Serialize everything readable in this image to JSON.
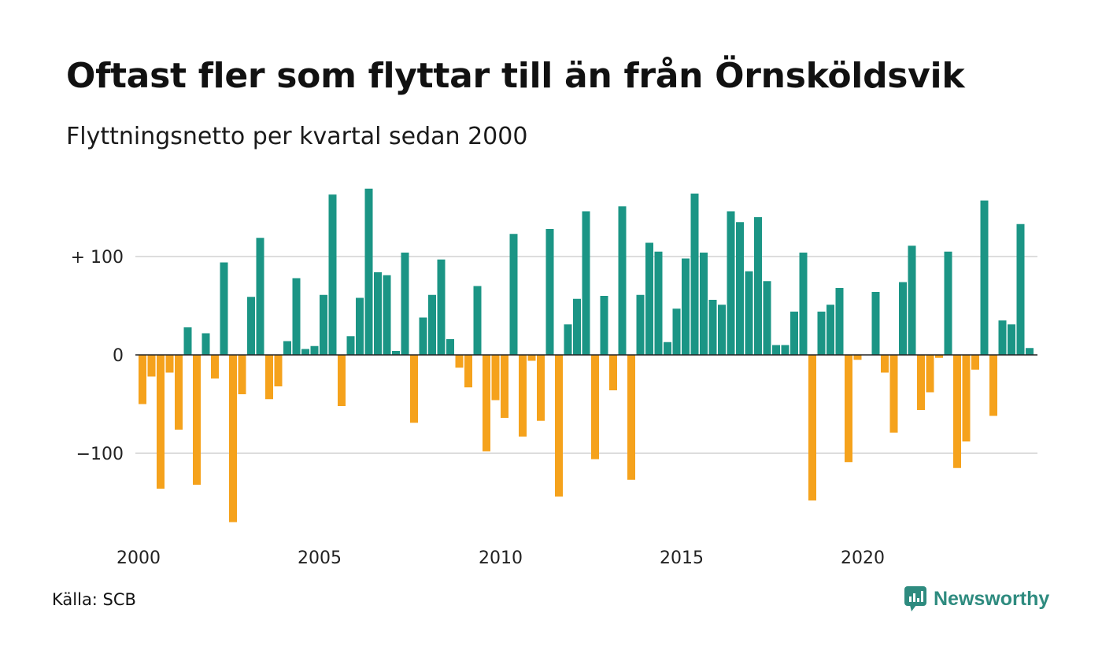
{
  "header": {
    "title": "Oftast fler som flyttar till än från Örnsköldsvik",
    "subtitle": "Flyttningsnetto per kvartal sedan 2000"
  },
  "footer": {
    "source": "Källa: SCB",
    "brand": "Newsworthy"
  },
  "colors": {
    "positive": "#1b9585",
    "negative": "#f5a21c",
    "grid": "#dddddd",
    "brand": "#2e8b7f"
  },
  "icons": {
    "brand_logo": "newsworthy-chart-bubble-icon"
  },
  "chart_data": {
    "type": "bar",
    "title": "Oftast fler som flyttar till än från Örnsköldsvik",
    "subtitle": "Flyttningsnetto per kvartal sedan 2000",
    "xlabel": "",
    "ylabel": "",
    "ylim": [
      -175,
      175
    ],
    "yticks": [
      {
        "value": 100,
        "label": "+ 100"
      },
      {
        "value": 0,
        "label": "0"
      },
      {
        "value": -100,
        "label": "−100"
      }
    ],
    "xticks": [
      {
        "year": 2000,
        "label": "2000"
      },
      {
        "year": 2005,
        "label": "2005"
      },
      {
        "year": 2010,
        "label": "2010"
      },
      {
        "year": 2015,
        "label": "2015"
      },
      {
        "year": 2020,
        "label": "2020"
      }
    ],
    "start_year": 2000,
    "grid": true,
    "legend": "none",
    "categories": [
      "2000K1",
      "2000K2",
      "2000K3",
      "2000K4",
      "2001K1",
      "2001K2",
      "2001K3",
      "2001K4",
      "2002K1",
      "2002K2",
      "2002K3",
      "2002K4",
      "2003K1",
      "2003K2",
      "2003K3",
      "2003K4",
      "2004K1",
      "2004K2",
      "2004K3",
      "2004K4",
      "2005K1",
      "2005K2",
      "2005K3",
      "2005K4",
      "2006K1",
      "2006K2",
      "2006K3",
      "2006K4",
      "2007K1",
      "2007K2",
      "2007K3",
      "2007K4",
      "2008K1",
      "2008K2",
      "2008K3",
      "2008K4",
      "2009K1",
      "2009K2",
      "2009K3",
      "2009K4",
      "2010K1",
      "2010K2",
      "2010K3",
      "2010K4",
      "2011K1",
      "2011K2",
      "2011K3",
      "2011K4",
      "2012K1",
      "2012K2",
      "2012K3",
      "2012K4",
      "2013K1",
      "2013K2",
      "2013K3",
      "2013K4",
      "2014K1",
      "2014K2",
      "2014K3",
      "2014K4",
      "2015K1",
      "2015K2",
      "2015K3",
      "2015K4",
      "2016K1",
      "2016K2",
      "2016K3",
      "2016K4",
      "2017K1",
      "2017K2",
      "2017K3",
      "2017K4",
      "2018K1",
      "2018K2",
      "2018K3",
      "2018K4",
      "2019K1",
      "2019K2",
      "2019K3",
      "2019K4",
      "2020K1",
      "2020K2",
      "2020K3",
      "2020K4",
      "2021K1",
      "2021K2",
      "2021K3",
      "2021K4",
      "2022K1",
      "2022K2",
      "2022K3",
      "2022K4",
      "2023K1",
      "2023K2",
      "2023K3",
      "2023K4",
      "2024K1",
      "2024K2",
      "2024K3"
    ],
    "values": [
      -50,
      -22,
      -136,
      -18,
      -76,
      28,
      -132,
      22,
      -24,
      94,
      -170,
      -40,
      59,
      119,
      -45,
      -32,
      14,
      78,
      6,
      9,
      61,
      163,
      -52,
      19,
      58,
      169,
      84,
      81,
      4,
      104,
      -69,
      38,
      61,
      97,
      16,
      -13,
      -33,
      70,
      -98,
      -46,
      -64,
      123,
      -83,
      -6,
      -67,
      128,
      -144,
      31,
      57,
      146,
      -106,
      60,
      -36,
      151,
      -127,
      61,
      114,
      105,
      13,
      47,
      98,
      164,
      104,
      56,
      51,
      146,
      135,
      85,
      140,
      75,
      10,
      10,
      44,
      104,
      -148,
      44,
      51,
      68,
      -109,
      -5,
      0,
      64,
      -18,
      -79,
      74,
      111,
      -56,
      -38,
      -3,
      105,
      -115,
      -88,
      -15,
      157,
      -62,
      35,
      31,
      133,
      7
    ]
  }
}
